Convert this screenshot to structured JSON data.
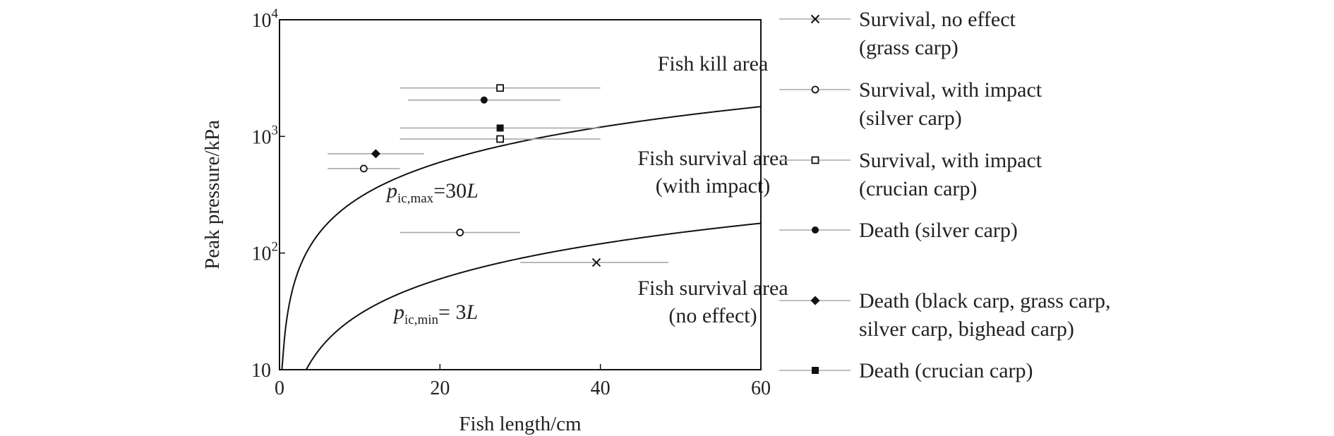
{
  "chart_data": {
    "type": "scatter",
    "xlabel": "Fish length/cm",
    "ylabel": "Peak pressure/kPa",
    "xlim": [
      0,
      60
    ],
    "ylim": [
      10,
      10000
    ],
    "y_scale": "log",
    "grid": false,
    "legend_position": "right",
    "x_ticks": [
      "0",
      "20",
      "40",
      "60"
    ],
    "y_ticks": [
      {
        "value": 10,
        "base": "10",
        "exp": ""
      },
      {
        "value": 100,
        "base": "10",
        "exp": "2"
      },
      {
        "value": 1000,
        "base": "10",
        "exp": "3"
      },
      {
        "value": 10000,
        "base": "10",
        "exp": "4"
      }
    ],
    "curves": [
      {
        "coef": 30,
        "label_main": "p",
        "label_sub": "ic,max",
        "label_rest": "=30",
        "label_var": "L"
      },
      {
        "coef": 3,
        "label_main": "p",
        "label_sub": "ic,min",
        "label_rest": "= 3",
        "label_var": "L"
      }
    ],
    "annotations": [
      {
        "text": "Fish kill area"
      },
      {
        "text": "Fish survival area"
      },
      {
        "text": "(with impact)"
      },
      {
        "text": "Fish survival area"
      },
      {
        "text": "(no effect)"
      }
    ],
    "series": [
      {
        "marker": "x",
        "legend": [
          "Survival, no effect",
          "(grass carp)"
        ],
        "points": [
          {
            "x": 39.5,
            "y": 83,
            "xmin": 30,
            "xmax": 48.5
          }
        ]
      },
      {
        "marker": "circle-open",
        "legend": [
          "Survival, with impact",
          "(silver carp)"
        ],
        "points": [
          {
            "x": 10.5,
            "y": 530,
            "xmin": 6,
            "xmax": 15
          },
          {
            "x": 22.5,
            "y": 150,
            "xmin": 15,
            "xmax": 30
          }
        ]
      },
      {
        "marker": "square-open",
        "legend": [
          "Survival, with impact",
          "(crucian carp)"
        ],
        "points": [
          {
            "x": 27.5,
            "y": 950,
            "xmin": 15,
            "xmax": 40
          },
          {
            "x": 27.5,
            "y": 2600,
            "xmin": 15,
            "xmax": 40
          }
        ]
      },
      {
        "marker": "circle-filled",
        "legend": [
          "Death (silver carp)"
        ],
        "points": [
          {
            "x": 25.5,
            "y": 2050,
            "xmin": 16,
            "xmax": 35
          }
        ]
      },
      {
        "marker": "diamond-filled",
        "legend": [
          "Death (black carp, grass carp,",
          "silver carp, bighead carp)"
        ],
        "points": [
          {
            "x": 12,
            "y": 710,
            "xmin": 6,
            "xmax": 18
          }
        ]
      },
      {
        "marker": "square-filled",
        "legend": [
          "Death (crucian carp)"
        ],
        "points": [
          {
            "x": 27.5,
            "y": 1180,
            "xmin": 15,
            "xmax": 40
          }
        ]
      }
    ]
  }
}
